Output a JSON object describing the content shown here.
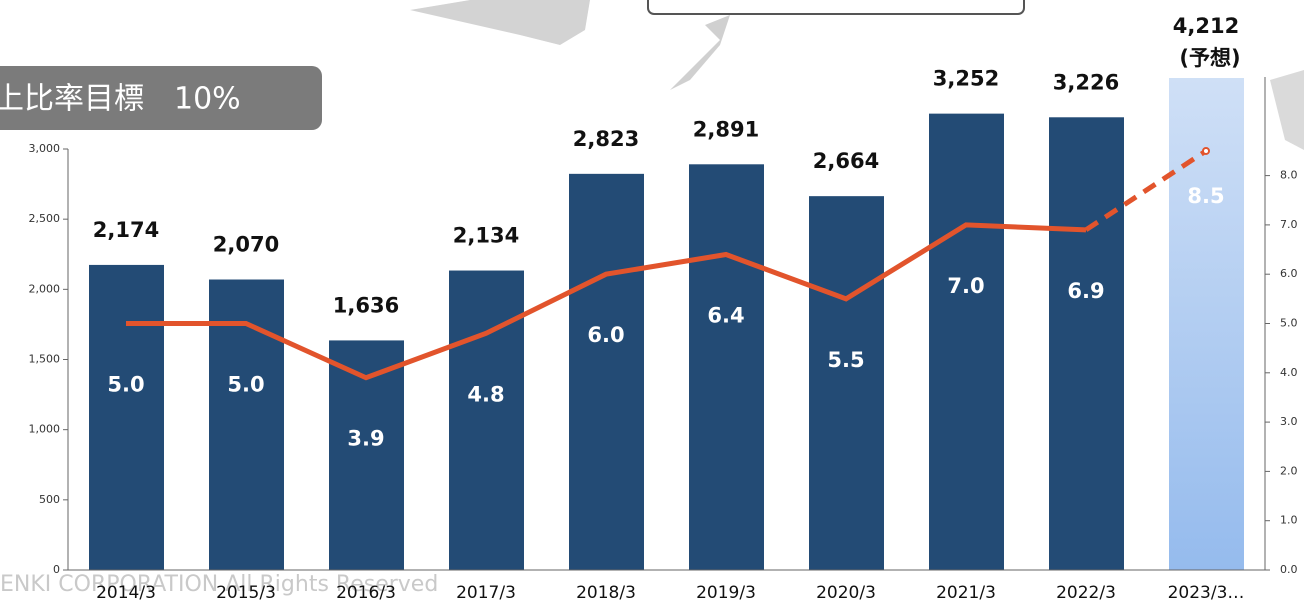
{
  "chart_data": {
    "type": "bar",
    "categories": [
      "2014/3",
      "2015/3",
      "2016/3",
      "2017/3",
      "2018/3",
      "2019/3",
      "2020/3",
      "2021/3",
      "2022/3",
      "2023/3…"
    ],
    "series": [
      {
        "type": "bar",
        "color": "#234b75",
        "forecast_color": "#a9c6ee",
        "values": [
          2174,
          2070,
          1636,
          2134,
          2823,
          2891,
          2664,
          3252,
          3226,
          4212
        ],
        "value_labels": [
          "2,174",
          "2,070",
          "1,636",
          "2,134",
          "2,823",
          "2,891",
          "2,664",
          "3,252",
          "3,226",
          "4,212"
        ]
      },
      {
        "type": "line",
        "axis": "y2",
        "color": "#e2542c",
        "values": [
          5.0,
          5.0,
          3.9,
          4.8,
          6.0,
          6.4,
          5.5,
          7.0,
          6.9,
          8.5
        ],
        "value_labels": [
          "5.0",
          "5.0",
          "3.9",
          "4.8",
          "6.0",
          "6.4",
          "5.5",
          "7.0",
          "6.9",
          "8.5"
        ]
      }
    ],
    "ylim": [
      0,
      3000
    ],
    "yticks": [
      0,
      500,
      {
        "value": 1000,
        "label": "1,000"
      },
      {
        "value": 1500,
        "label": "1,500"
      },
      {
        "value": 2000,
        "label": "2,000"
      },
      {
        "value": 2500,
        "label": "2,500"
      },
      {
        "value": 3000,
        "label": "3,000"
      }
    ],
    "y2lim": [
      0,
      10
    ],
    "y2ticks": [
      {
        "value": 0,
        "label": "0.0"
      },
      {
        "value": 1,
        "label": "1.0"
      },
      {
        "value": 2,
        "label": "2.0"
      },
      {
        "value": 3,
        "label": "3.0"
      },
      {
        "value": 4,
        "label": "4.0"
      },
      {
        "value": 5,
        "label": "5.0"
      },
      {
        "value": 6,
        "label": "6.0"
      },
      {
        "value": 7,
        "label": "7.0"
      },
      {
        "value": 8,
        "label": "8.0"
      }
    ],
    "annotations": [
      "上比率目標　10%",
      "(予想)",
      "ENKI CORPORATION All Rights Reserved"
    ],
    "grid": false
  }
}
